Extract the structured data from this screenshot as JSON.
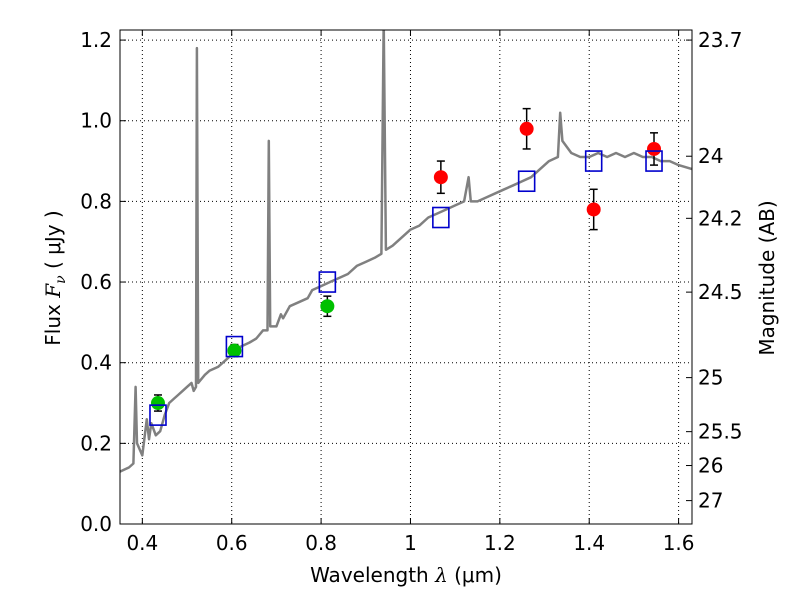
{
  "chart_data": {
    "type": "scatter",
    "xlabel": "Wavelength",
    "xlabel_symbol": "λ",
    "xlabel_unit": "(μm)",
    "ylabel": "Flux",
    "ylabel_symbol": "F",
    "ylabel_subscript": "ν",
    "ylabel_unit": "( μJy )",
    "y2label": "Magnitude (AB)",
    "xlim": [
      0.35,
      1.63
    ],
    "ylim": [
      0.0,
      1.225
    ],
    "grid": true,
    "x_ticks": [
      0.4,
      0.6,
      0.8,
      1.0,
      1.2,
      1.4,
      1.6
    ],
    "x_tick_labels": [
      "0.4",
      "0.6",
      "0.8",
      "1",
      "1.2",
      "1.4",
      "1.6"
    ],
    "y_ticks": [
      0.0,
      0.2,
      0.4,
      0.6,
      0.8,
      1.0,
      1.2
    ],
    "y_tick_labels": [
      "0.0",
      "0.2",
      "0.4",
      "0.6",
      "0.8",
      "1.0",
      "1.2"
    ],
    "y2_ticks": [
      {
        "label": "23.7",
        "flux": 1.2
      },
      {
        "label": "24",
        "flux": 0.912
      },
      {
        "label": "24.2",
        "flux": 0.758
      },
      {
        "label": "24.5",
        "flux": 0.575
      },
      {
        "label": "25",
        "flux": 0.363
      },
      {
        "label": "25.5",
        "flux": 0.229
      },
      {
        "label": "26",
        "flux": 0.145
      },
      {
        "label": "27",
        "flux": 0.058
      }
    ],
    "colors": {
      "spectrum": "#808080",
      "green_points": "#00c000",
      "red_points": "#ff0000",
      "model_boxes": "#0000cc",
      "error_bars": "#000000"
    },
    "series": [
      {
        "kind": "spectrum",
        "points": [
          [
            0.35,
            0.13
          ],
          [
            0.37,
            0.14
          ],
          [
            0.38,
            0.15
          ],
          [
            0.385,
            0.34
          ],
          [
            0.388,
            0.2
          ],
          [
            0.4,
            0.17
          ],
          [
            0.41,
            0.26
          ],
          [
            0.415,
            0.21
          ],
          [
            0.42,
            0.25
          ],
          [
            0.43,
            0.22
          ],
          [
            0.44,
            0.23
          ],
          [
            0.45,
            0.27
          ],
          [
            0.46,
            0.3
          ],
          [
            0.47,
            0.31
          ],
          [
            0.48,
            0.32
          ],
          [
            0.49,
            0.33
          ],
          [
            0.5,
            0.34
          ],
          [
            0.51,
            0.35
          ],
          [
            0.515,
            0.33
          ],
          [
            0.52,
            0.34
          ],
          [
            0.522,
            1.18
          ],
          [
            0.525,
            0.35
          ],
          [
            0.54,
            0.37
          ],
          [
            0.55,
            0.38
          ],
          [
            0.57,
            0.39
          ],
          [
            0.58,
            0.4
          ],
          [
            0.59,
            0.41
          ],
          [
            0.6,
            0.42
          ],
          [
            0.62,
            0.44
          ],
          [
            0.64,
            0.45
          ],
          [
            0.655,
            0.46
          ],
          [
            0.67,
            0.48
          ],
          [
            0.68,
            0.48
          ],
          [
            0.683,
            0.95
          ],
          [
            0.686,
            0.49
          ],
          [
            0.7,
            0.49
          ],
          [
            0.71,
            0.52
          ],
          [
            0.715,
            0.51
          ],
          [
            0.73,
            0.54
          ],
          [
            0.75,
            0.55
          ],
          [
            0.77,
            0.56
          ],
          [
            0.78,
            0.58
          ],
          [
            0.8,
            0.59
          ],
          [
            0.82,
            0.6
          ],
          [
            0.84,
            0.61
          ],
          [
            0.86,
            0.62
          ],
          [
            0.88,
            0.64
          ],
          [
            0.9,
            0.65
          ],
          [
            0.92,
            0.66
          ],
          [
            0.935,
            0.67
          ],
          [
            0.94,
            1.25
          ],
          [
            0.945,
            0.68
          ],
          [
            0.96,
            0.69
          ],
          [
            0.98,
            0.71
          ],
          [
            1.0,
            0.73
          ],
          [
            1.02,
            0.74
          ],
          [
            1.04,
            0.76
          ],
          [
            1.06,
            0.77
          ],
          [
            1.08,
            0.78
          ],
          [
            1.1,
            0.79
          ],
          [
            1.12,
            0.8
          ],
          [
            1.13,
            0.86
          ],
          [
            1.135,
            0.8
          ],
          [
            1.15,
            0.8
          ],
          [
            1.17,
            0.81
          ],
          [
            1.19,
            0.82
          ],
          [
            1.21,
            0.83
          ],
          [
            1.23,
            0.84
          ],
          [
            1.25,
            0.85
          ],
          [
            1.27,
            0.86
          ],
          [
            1.29,
            0.88
          ],
          [
            1.31,
            0.9
          ],
          [
            1.33,
            0.91
          ],
          [
            1.335,
            1.02
          ],
          [
            1.34,
            0.95
          ],
          [
            1.36,
            0.92
          ],
          [
            1.38,
            0.91
          ],
          [
            1.4,
            0.91
          ],
          [
            1.42,
            0.92
          ],
          [
            1.44,
            0.91
          ],
          [
            1.46,
            0.92
          ],
          [
            1.48,
            0.91
          ],
          [
            1.5,
            0.92
          ],
          [
            1.52,
            0.91
          ],
          [
            1.54,
            0.91
          ],
          [
            1.56,
            0.9
          ],
          [
            1.58,
            0.9
          ],
          [
            1.6,
            0.89
          ],
          [
            1.63,
            0.88
          ]
        ]
      },
      {
        "kind": "observed-green",
        "points": [
          {
            "x": 0.435,
            "y": 0.3,
            "err": 0.02
          },
          {
            "x": 0.606,
            "y": 0.43,
            "err": 0.015
          },
          {
            "x": 0.814,
            "y": 0.54,
            "err": 0.025
          }
        ]
      },
      {
        "kind": "observed-red",
        "points": [
          {
            "x": 1.068,
            "y": 0.86,
            "err": 0.04
          },
          {
            "x": 1.26,
            "y": 0.98,
            "err": 0.05
          },
          {
            "x": 1.41,
            "y": 0.78,
            "err": 0.05
          },
          {
            "x": 1.545,
            "y": 0.93,
            "err": 0.04
          }
        ]
      },
      {
        "kind": "model-boxes",
        "points": [
          {
            "x": 0.435,
            "y": 0.27
          },
          {
            "x": 0.606,
            "y": 0.44
          },
          {
            "x": 0.814,
            "y": 0.6
          },
          {
            "x": 1.068,
            "y": 0.76
          },
          {
            "x": 1.26,
            "y": 0.85
          },
          {
            "x": 1.41,
            "y": 0.9
          },
          {
            "x": 1.545,
            "y": 0.9
          }
        ]
      }
    ]
  }
}
